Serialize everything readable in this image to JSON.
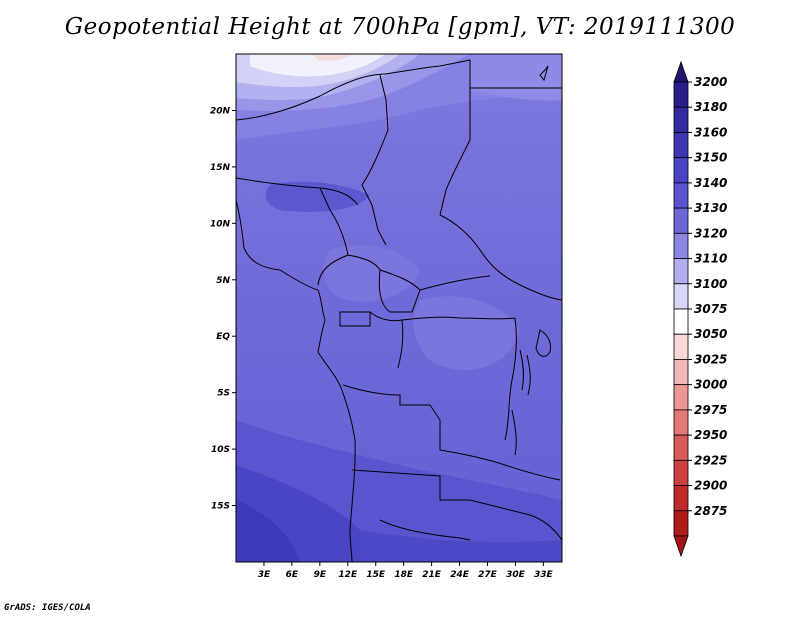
{
  "title": "Geopotential Height at 700hPa [gpm], VT: 2019111300",
  "credit": "GrADS: IGES/COLA",
  "map": {
    "lon_range": [
      0,
      35
    ],
    "lat_range": [
      -20,
      25
    ],
    "lat_ticks": [
      {
        "value": 20,
        "label": "20N"
      },
      {
        "value": 15,
        "label": "15N"
      },
      {
        "value": 10,
        "label": "10N"
      },
      {
        "value": 5,
        "label": "5N"
      },
      {
        "value": 0,
        "label": "EQ"
      },
      {
        "value": -5,
        "label": "5S"
      },
      {
        "value": -10,
        "label": "10S"
      },
      {
        "value": -15,
        "label": "15S"
      }
    ],
    "lon_ticks": [
      {
        "value": 3,
        "label": "3E"
      },
      {
        "value": 6,
        "label": "6E"
      },
      {
        "value": 9,
        "label": "9E"
      },
      {
        "value": 12,
        "label": "12E"
      },
      {
        "value": 15,
        "label": "15E"
      },
      {
        "value": 18,
        "label": "18E"
      },
      {
        "value": 21,
        "label": "21E"
      },
      {
        "value": 24,
        "label": "24E"
      },
      {
        "value": 27,
        "label": "27E"
      },
      {
        "value": 30,
        "label": "30E"
      },
      {
        "value": 33,
        "label": "33E"
      }
    ]
  },
  "colorbar": {
    "levels": [
      {
        "label": "3200",
        "color": "#2a1f8a"
      },
      {
        "label": "3180",
        "color": "#332aa0"
      },
      {
        "label": "3160",
        "color": "#3c36b2"
      },
      {
        "label": "3150",
        "color": "#4a45c4"
      },
      {
        "label": "3140",
        "color": "#5a55cf"
      },
      {
        "label": "3130",
        "color": "#6c67d8"
      },
      {
        "label": "3120",
        "color": "#8a86e2"
      },
      {
        "label": "3110",
        "color": "#b0aeee"
      },
      {
        "label": "3100",
        "color": "#d8d7f7"
      },
      {
        "label": "3075",
        "color": "#ffffff"
      },
      {
        "label": "3050",
        "color": "#fbd8d8"
      },
      {
        "label": "3025",
        "color": "#f4b7b7"
      },
      {
        "label": "3000",
        "color": "#ec9696"
      },
      {
        "label": "2975",
        "color": "#e27878"
      },
      {
        "label": "2950",
        "color": "#d85a5a"
      },
      {
        "label": "2925",
        "color": "#cc4040"
      },
      {
        "label": "2900",
        "color": "#bf2b2b"
      },
      {
        "label": "2875",
        "color": "#b01c1c"
      }
    ],
    "top_color": "#20146e",
    "bottom_color": "#a31414"
  }
}
